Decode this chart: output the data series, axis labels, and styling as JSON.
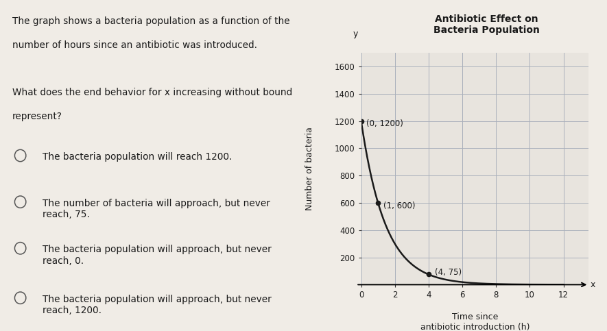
{
  "title_line1": "Antibiotic Effect on",
  "title_line2": "Bacteria Population",
  "xlabel_line1": "Time since",
  "xlabel_line2": "antibiotic introduction (h)",
  "ylabel": "Number of bacteria",
  "xlim": [
    0,
    13.5
  ],
  "ylim": [
    0,
    1700
  ],
  "xticks": [
    0,
    2,
    4,
    6,
    8,
    10,
    12
  ],
  "yticks": [
    200,
    400,
    600,
    800,
    1000,
    1200,
    1400,
    1600
  ],
  "points": [
    [
      0,
      1200
    ],
    [
      1,
      600
    ],
    [
      4,
      75
    ]
  ],
  "point_labels": [
    "(0, 1200)",
    "(1, 600)",
    "(4, 75)"
  ],
  "curve_color": "#1a1a1a",
  "point_color": "#1a1a1a",
  "background_color": "#f0ece6",
  "plot_bg_color": "#e8e4de",
  "grid_color": "#aab0bb",
  "text_color": "#1a1a1a",
  "question_text_line1": "The graph shows a bacteria population as a function of the",
  "question_text_line2": "number of hours since an antibiotic was introduced.",
  "question_text_line3": "",
  "question_text_line4": "What does the end behavior for x increasing without bound",
  "question_text_line5": "represent?",
  "choices": [
    "The bacteria population will reach 1200.",
    "The number of bacteria will approach, but never\nreach, 75.",
    "The bacteria population will approach, but never\nreach, 0.",
    "The bacteria population will approach, but never\nreach, 1200."
  ],
  "decay_a": 1200,
  "decay_b": 0.5
}
